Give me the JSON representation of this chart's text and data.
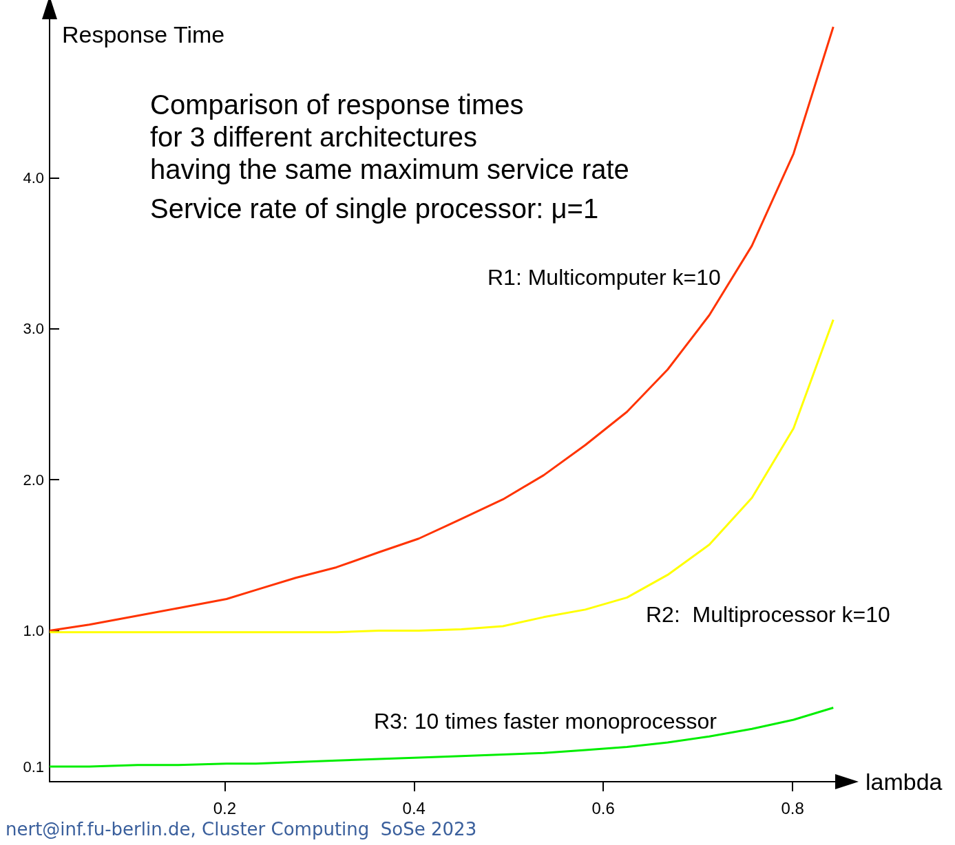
{
  "chart_data": {
    "type": "line",
    "title": "Comparison of response times\nfor 3 different architectures\nhaving the same maximum service rate",
    "subtitle": "Service rate of single processor: μ=1",
    "xlabel": "lambda",
    "ylabel": "Response Time",
    "x": [
      0.015,
      0.057,
      0.108,
      0.151,
      0.202,
      0.233,
      0.275,
      0.318,
      0.363,
      0.405,
      0.45,
      0.494,
      0.537,
      0.581,
      0.625,
      0.668,
      0.712,
      0.757,
      0.801,
      0.843
    ],
    "series": [
      {
        "color": "#ff3300",
        "values": [
          1.0,
          1.04,
          1.1,
          1.15,
          1.21,
          1.27,
          1.35,
          1.42,
          1.52,
          1.61,
          1.74,
          1.87,
          2.03,
          2.23,
          2.45,
          2.73,
          3.09,
          3.55,
          4.16,
          5.0
        ]
      },
      {
        "color": "#ffff00",
        "values": [
          0.99,
          0.99,
          0.99,
          0.99,
          0.99,
          0.99,
          0.99,
          0.99,
          1.0,
          1.0,
          1.01,
          1.03,
          1.09,
          1.14,
          1.22,
          1.37,
          1.57,
          1.88,
          2.34,
          3.06
        ]
      },
      {
        "color": "#00ee00",
        "values": [
          0.1,
          0.1,
          0.11,
          0.11,
          0.12,
          0.12,
          0.13,
          0.14,
          0.15,
          0.16,
          0.17,
          0.18,
          0.19,
          0.21,
          0.23,
          0.26,
          0.3,
          0.35,
          0.41,
          0.49
        ]
      }
    ],
    "annotations": [
      "R1: Multicomputer k=10",
      "R2:  Multiprocessor k=10",
      "R3: 10 times faster monoprocessor",
      "nert@inf.fu-berlin.de, Cluster Computing  SoSe 2023"
    ],
    "xlim": [
      0.015,
      0.845
    ],
    "ylim": [
      0,
      5.05
    ],
    "xticks": [
      0.2,
      0.4,
      0.6,
      0.8
    ],
    "yticks": [
      {
        "value": 0.1,
        "label": "0.1"
      },
      {
        "value": 1,
        "label": "1.0"
      },
      {
        "value": 2,
        "label": "2.0"
      },
      {
        "value": 3,
        "label": "3.0"
      },
      {
        "value": 4,
        "label": "4.0"
      }
    ],
    "grid": false,
    "marker": "none",
    "line_style": "solid"
  }
}
